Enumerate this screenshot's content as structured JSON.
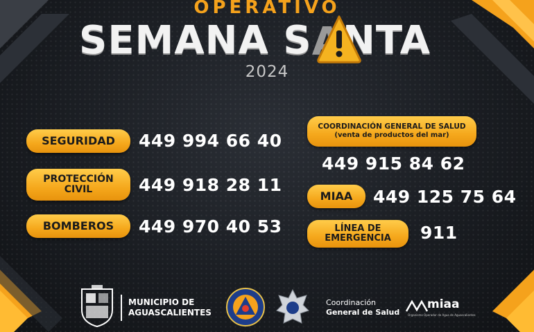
{
  "header": {
    "kicker": "OPERATIVO",
    "title_part1": "SEMANA S",
    "title_part2": "NTA",
    "year": "2024",
    "warning_icon": "warning-triangle-icon"
  },
  "contacts_left": [
    {
      "label": "SEGURIDAD",
      "phone": "449 994 66 40"
    },
    {
      "label_line1": "PROTECCIÓN",
      "label_line2": "CIVIL",
      "phone": "449 918 28 11"
    },
    {
      "label": "BOMBEROS",
      "phone": "449 970 40 53"
    }
  ],
  "contacts_right": [
    {
      "label_line1": "COORDINACIÓN GENERAL DE SALUD",
      "label_line2": "(venta de productos del mar)",
      "phone": "449 915 84 62"
    },
    {
      "label": "MIAA",
      "phone": "449 125 75 64"
    },
    {
      "label_line1": "LÍNEA DE",
      "label_line2": "EMERGENCIA",
      "phone": "911"
    }
  ],
  "footer": {
    "municipio_line1": "MUNICIPIO DE",
    "municipio_line2": "AGUASCALIENTES",
    "salud_line1": "Coordinación",
    "salud_line2": "General de Salud",
    "miaa_logo": "miaa",
    "miaa_tagline": "Organismo Operador de Agua de Aguascalientes"
  },
  "colors": {
    "accent": "#f5a81c",
    "background": "#1a1d22",
    "text": "#ffffff"
  }
}
